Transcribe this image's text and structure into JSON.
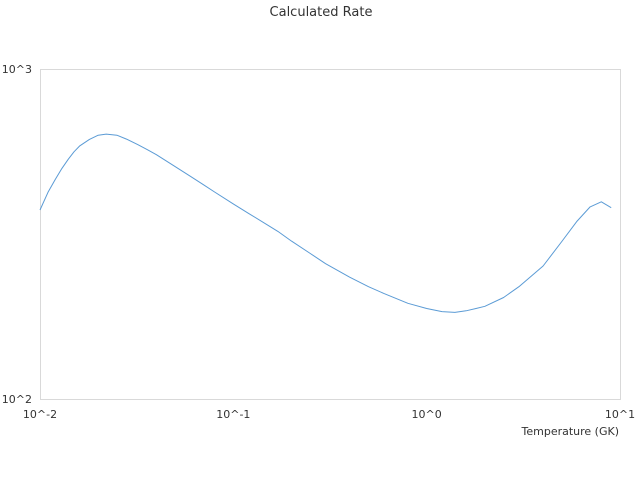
{
  "chart_data": {
    "type": "line",
    "title": "Calculated Rate",
    "xlabel": "Temperature (GK)",
    "ylabel": "",
    "x_scale": "log",
    "y_scale": "log",
    "xlim": [
      0.01,
      10
    ],
    "ylim": [
      100,
      1000
    ],
    "x_ticks": [
      {
        "value": 0.01,
        "label": "10^-2"
      },
      {
        "value": 0.1,
        "label": "10^-1"
      },
      {
        "value": 1,
        "label": "10^0"
      },
      {
        "value": 10,
        "label": "10^1"
      }
    ],
    "y_ticks": [
      {
        "value": 100,
        "label": "10^2"
      },
      {
        "value": 1000,
        "label": "10^3"
      }
    ],
    "grid": false,
    "legend": "none",
    "series": [
      {
        "color": "#5b9bd5",
        "x": [
          0.01,
          0.011,
          0.012,
          0.013,
          0.014,
          0.015,
          0.016,
          0.018,
          0.02,
          0.022,
          0.025,
          0.028,
          0.032,
          0.036,
          0.04,
          0.05,
          0.06,
          0.07,
          0.08,
          0.1,
          0.12,
          0.15,
          0.17,
          0.2,
          0.25,
          0.3,
          0.4,
          0.5,
          0.6,
          0.8,
          1.0,
          1.2,
          1.4,
          1.6,
          1.8,
          2.0,
          2.5,
          3.0,
          4.0,
          5.0,
          6.0,
          7.0,
          8.0,
          9.0
        ],
        "y": [
          374,
          423,
          463,
          500,
          533,
          561,
          584,
          612,
          630,
          635,
          630,
          613,
          590,
          569,
          550,
          506,
          473,
          446,
          424,
          390,
          365,
          337,
          322,
          301,
          276,
          257,
          234,
          219,
          209,
          195,
          188,
          184,
          183,
          185,
          188,
          191,
          203,
          219,
          253,
          300,
          346,
          382,
          396,
          380
        ]
      }
    ]
  }
}
